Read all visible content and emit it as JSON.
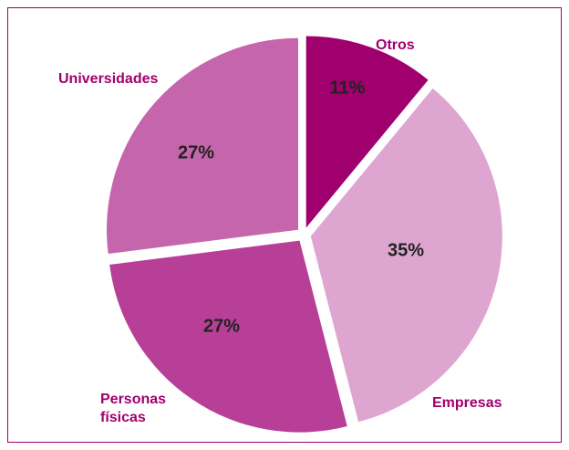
{
  "chart_data": {
    "type": "pie",
    "categories": [
      "Otros",
      "Empresas",
      "Personas físicas",
      "Universidades"
    ],
    "values": [
      11,
      35,
      27,
      27
    ],
    "value_labels": [
      "11%",
      "35%",
      "27%",
      "27%"
    ],
    "colors": [
      "#a0006e",
      "#dda5d0",
      "#b83f98",
      "#c566ac"
    ]
  }
}
